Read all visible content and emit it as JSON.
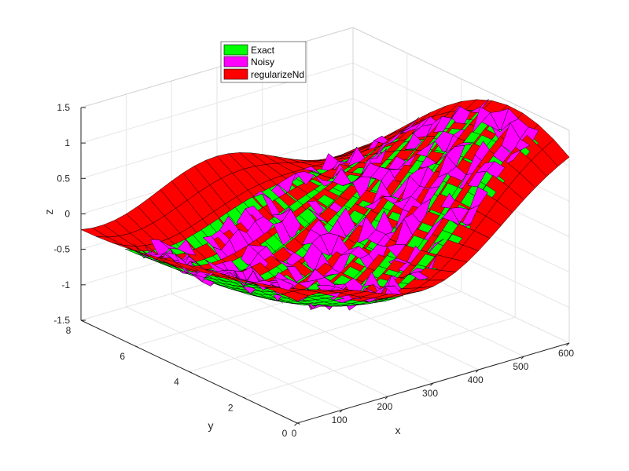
{
  "chart_data": {
    "type": "surface3d",
    "title": "",
    "xlabel": "x",
    "ylabel": "y",
    "zlabel": "z",
    "xlim": [
      0,
      600
    ],
    "ylim": [
      0,
      8
    ],
    "zlim": [
      -1.5,
      1.5
    ],
    "x_ticks": [
      "0",
      "100",
      "200",
      "300",
      "400",
      "500",
      "600"
    ],
    "y_ticks": [
      "0",
      "2",
      "4",
      "6",
      "8"
    ],
    "z_ticks": [
      "-1.5",
      "-1",
      "-0.5",
      "0",
      "0.5",
      "1",
      "1.5"
    ],
    "grid": true,
    "legend_position": "top",
    "series": [
      {
        "name": "Exact",
        "color": "#00ff00"
      },
      {
        "name": "Noisy",
        "color": "#ff00ff"
      },
      {
        "name": "regularizeNd",
        "color": "#ff0000"
      }
    ]
  }
}
